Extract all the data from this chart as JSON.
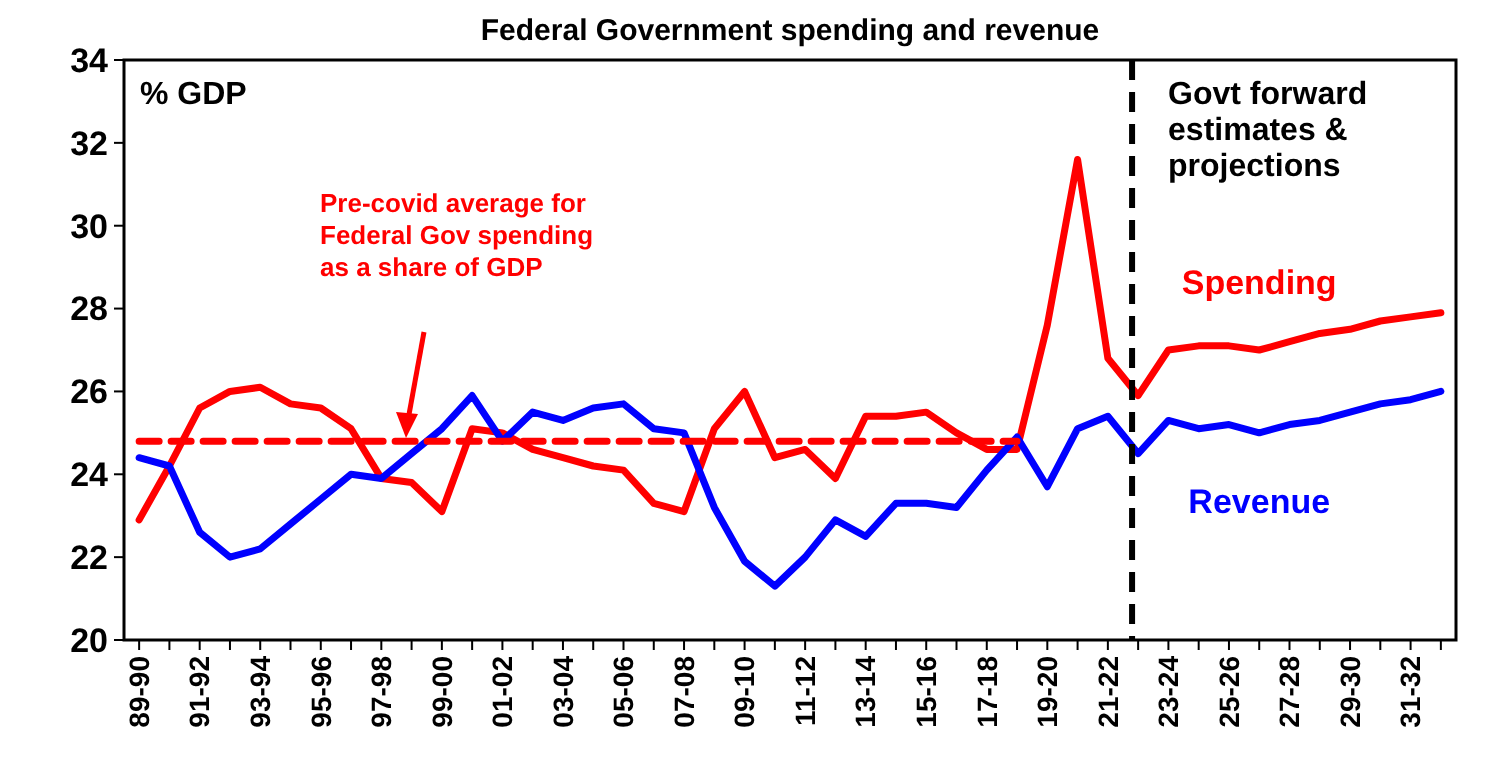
{
  "chart_data": {
    "type": "line",
    "title": "Federal Government spending and revenue",
    "ylabel": "% GDP",
    "categories": [
      "89-90",
      null,
      "91-92",
      null,
      "93-94",
      null,
      "95-96",
      null,
      "97-98",
      null,
      "99-00",
      null,
      "01-02",
      null,
      "03-04",
      null,
      "05-06",
      null,
      "07-08",
      null,
      "09-10",
      null,
      "11-12",
      null,
      "13-14",
      null,
      "15-16",
      null,
      "17-18",
      null,
      "19-20",
      null,
      "21-22",
      null,
      "23-24",
      null,
      "25-26",
      null,
      "27-28",
      null,
      "29-30",
      null,
      "31-32",
      null
    ],
    "series": [
      {
        "name": "Spending",
        "color": "#ff0000",
        "values": [
          22.9,
          24.2,
          25.6,
          26.0,
          26.1,
          25.7,
          25.6,
          25.1,
          23.9,
          23.8,
          23.1,
          25.1,
          25.0,
          24.6,
          24.4,
          24.2,
          24.1,
          23.3,
          23.1,
          25.1,
          26.0,
          24.4,
          24.6,
          23.9,
          25.4,
          25.4,
          25.5,
          25.0,
          24.6,
          24.6,
          27.6,
          31.6,
          26.8,
          25.9,
          27.0,
          27.1,
          27.1,
          27.0,
          27.2,
          27.4,
          27.5,
          27.7,
          27.8,
          27.9
        ]
      },
      {
        "name": "Revenue",
        "color": "#0000ff",
        "values": [
          24.4,
          24.2,
          22.6,
          22.0,
          22.2,
          22.8,
          23.4,
          24.0,
          23.9,
          24.5,
          25.1,
          25.9,
          24.8,
          25.5,
          25.3,
          25.6,
          25.7,
          25.1,
          25.0,
          23.2,
          21.9,
          21.3,
          22.0,
          22.9,
          22.5,
          23.3,
          23.3,
          23.2,
          24.1,
          24.9,
          23.7,
          25.1,
          25.4,
          24.5,
          25.3,
          25.1,
          25.2,
          25.0,
          25.2,
          25.3,
          25.5,
          25.7,
          25.8,
          26.0
        ]
      },
      {
        "color": "#ff0000",
        "line_style": "dashed",
        "values": [
          24.8,
          24.8,
          24.8,
          24.8,
          24.8,
          24.8,
          24.8,
          24.8,
          24.8,
          24.8,
          24.8,
          24.8,
          24.8,
          24.8,
          24.8,
          24.8,
          24.8,
          24.8,
          24.8,
          24.8,
          24.8,
          24.8,
          24.8,
          24.8,
          24.8,
          24.8,
          24.8,
          24.8,
          24.8,
          24.8,
          null,
          null,
          null,
          null,
          null,
          null,
          null,
          null,
          null,
          null,
          null,
          null,
          null,
          null
        ]
      }
    ],
    "annotations": [
      "Pre-covid average for Federal Gov spending as a share of GDP",
      "Govt forward estimates & projections"
    ],
    "ylim": [
      20,
      34
    ],
    "yticks": [
      20,
      22,
      24,
      26,
      28,
      30,
      32,
      34
    ],
    "grid": false,
    "marker": "none",
    "line_style": "solid"
  }
}
